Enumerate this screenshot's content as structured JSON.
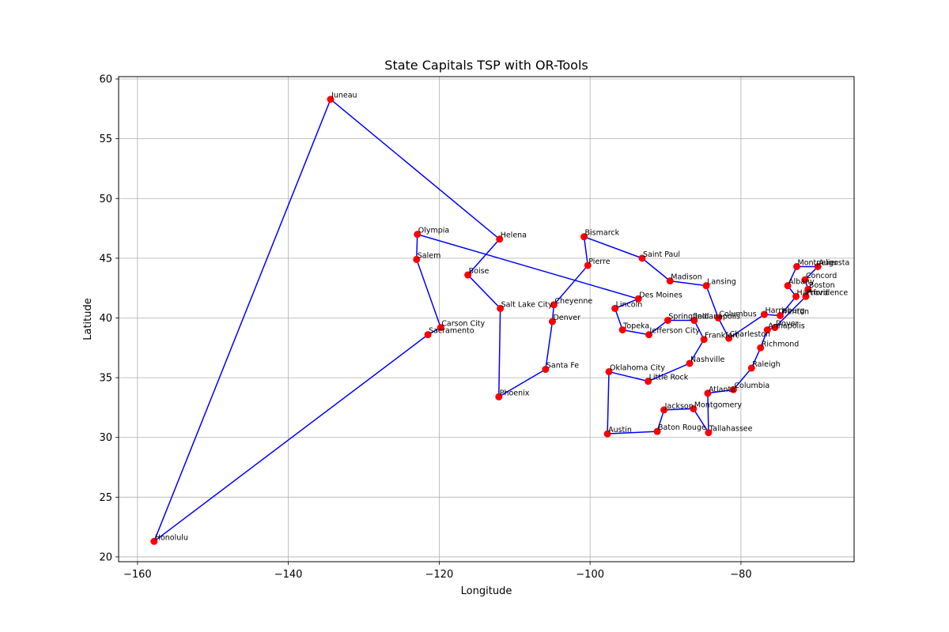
{
  "chart_data": {
    "type": "line",
    "title": "State Capitals TSP with OR-Tools",
    "xlabel": "Longitude",
    "ylabel": "Latitude",
    "xlim": [
      -162.5,
      -65.0
    ],
    "ylim": [
      19.6,
      60.2
    ],
    "xticks": [
      -160,
      -140,
      -120,
      -100,
      -80
    ],
    "xtick_labels": [
      "−160",
      "−140",
      "−120",
      "−100",
      "−80"
    ],
    "yticks": [
      20,
      25,
      30,
      35,
      40,
      45,
      50,
      55,
      60
    ],
    "ytick_labels": [
      "20",
      "25",
      "30",
      "35",
      "40",
      "45",
      "50",
      "55",
      "60"
    ],
    "grid": true,
    "route_color": "#0000ff",
    "marker_color": "#ff0000",
    "closed_route": true,
    "route": [
      {
        "name": "Honolulu",
        "lon": -157.8,
        "lat": 21.3
      },
      {
        "name": "Juneau",
        "lon": -134.4,
        "lat": 58.3
      },
      {
        "name": "Helena",
        "lon": -112.0,
        "lat": 46.6
      },
      {
        "name": "Boise",
        "lon": -116.2,
        "lat": 43.6
      },
      {
        "name": "Salt Lake City",
        "lon": -111.9,
        "lat": 40.8
      },
      {
        "name": "Phoenix",
        "lon": -112.1,
        "lat": 33.4
      },
      {
        "name": "Santa Fe",
        "lon": -105.9,
        "lat": 35.7
      },
      {
        "name": "Denver",
        "lon": -105.0,
        "lat": 39.7
      },
      {
        "name": "Cheyenne",
        "lon": -104.8,
        "lat": 41.1
      },
      {
        "name": "Pierre",
        "lon": -100.3,
        "lat": 44.4
      },
      {
        "name": "Bismarck",
        "lon": -100.8,
        "lat": 46.8
      },
      {
        "name": "Saint Paul",
        "lon": -93.1,
        "lat": 45.0
      },
      {
        "name": "Madison",
        "lon": -89.4,
        "lat": 43.1
      },
      {
        "name": "Lansing",
        "lon": -84.6,
        "lat": 42.7
      },
      {
        "name": "Columbus",
        "lon": -83.0,
        "lat": 40.0
      },
      {
        "name": "Charleston",
        "lon": -81.6,
        "lat": 38.3
      },
      {
        "name": "Harrisburg",
        "lon": -76.9,
        "lat": 40.3
      },
      {
        "name": "Trenton",
        "lon": -74.8,
        "lat": 40.2
      },
      {
        "name": "Hartford",
        "lon": -72.7,
        "lat": 41.8
      },
      {
        "name": "Albany",
        "lon": -73.8,
        "lat": 42.7
      },
      {
        "name": "Montpelier",
        "lon": -72.6,
        "lat": 44.3
      },
      {
        "name": "Augusta",
        "lon": -69.8,
        "lat": 44.3
      },
      {
        "name": "Concord",
        "lon": -71.5,
        "lat": 43.2
      },
      {
        "name": "Boston",
        "lon": -71.1,
        "lat": 42.4
      },
      {
        "name": "Providence",
        "lon": -71.4,
        "lat": 41.8
      },
      {
        "name": "Dover",
        "lon": -75.5,
        "lat": 39.2
      },
      {
        "name": "Annapolis",
        "lon": -76.5,
        "lat": 39.0
      },
      {
        "name": "Richmond",
        "lon": -77.4,
        "lat": 37.5
      },
      {
        "name": "Raleigh",
        "lon": -78.6,
        "lat": 35.8
      },
      {
        "name": "Columbia",
        "lon": -81.0,
        "lat": 34.0
      },
      {
        "name": "Atlanta",
        "lon": -84.4,
        "lat": 33.7
      },
      {
        "name": "Tallahassee",
        "lon": -84.3,
        "lat": 30.4
      },
      {
        "name": "Montgomery",
        "lon": -86.3,
        "lat": 32.4
      },
      {
        "name": "Jackson",
        "lon": -90.2,
        "lat": 32.3
      },
      {
        "name": "Baton Rouge",
        "lon": -91.1,
        "lat": 30.5
      },
      {
        "name": "Austin",
        "lon": -97.7,
        "lat": 30.3
      },
      {
        "name": "Oklahoma City",
        "lon": -97.5,
        "lat": 35.5
      },
      {
        "name": "Little Rock",
        "lon": -92.3,
        "lat": 34.7
      },
      {
        "name": "Nashville",
        "lon": -86.8,
        "lat": 36.2
      },
      {
        "name": "Frankfort",
        "lon": -84.9,
        "lat": 38.2
      },
      {
        "name": "Indianapolis",
        "lon": -86.2,
        "lat": 39.8
      },
      {
        "name": "Springfield",
        "lon": -89.7,
        "lat": 39.8
      },
      {
        "name": "Jefferson City",
        "lon": -92.2,
        "lat": 38.6
      },
      {
        "name": "Topeka",
        "lon": -95.7,
        "lat": 39.0
      },
      {
        "name": "Lincoln",
        "lon": -96.7,
        "lat": 40.8
      },
      {
        "name": "Des Moines",
        "lon": -93.6,
        "lat": 41.6
      },
      {
        "name": "Olympia",
        "lon": -122.9,
        "lat": 47.0
      },
      {
        "name": "Salem",
        "lon": -123.0,
        "lat": 44.9
      },
      {
        "name": "Carson City",
        "lon": -119.8,
        "lat": 39.2
      },
      {
        "name": "Sacramento",
        "lon": -121.5,
        "lat": 38.6
      }
    ]
  }
}
